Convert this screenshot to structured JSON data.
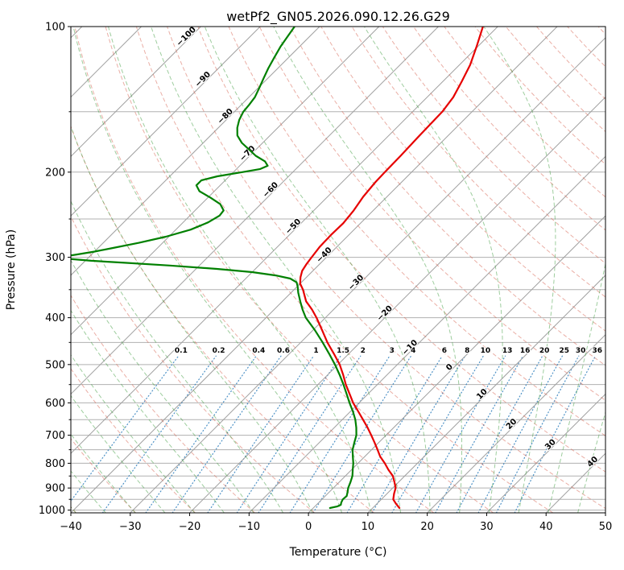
{
  "chart_data": {
    "type": "skewt",
    "title": "wetPf2_GN05.2026.090.12.26.G29",
    "xlabel": "Temperature (°C)",
    "ylabel": "Pressure (hPa)",
    "x_range": [
      -40,
      50
    ],
    "x_ticks": [
      -40,
      -30,
      -20,
      -10,
      0,
      10,
      20,
      30,
      40,
      50
    ],
    "pressure_range": [
      100,
      1013
    ],
    "pressure_ticks": [
      100,
      200,
      300,
      400,
      500,
      600,
      700,
      800,
      900,
      1000
    ],
    "pressure_gridlines": [
      100,
      150,
      200,
      250,
      300,
      350,
      400,
      450,
      500,
      550,
      600,
      650,
      700,
      750,
      800,
      850,
      900,
      950,
      1000
    ],
    "skew_degrees": 45,
    "isotherms": {
      "min": -120,
      "max": 50,
      "step": 10
    },
    "isotherm_labels": [
      [
        -100,
        106
      ],
      [
        -90,
        130
      ],
      [
        -80,
        155
      ],
      [
        -70,
        185
      ],
      [
        -60,
        220
      ],
      [
        -50,
        262
      ],
      [
        -40,
        300
      ],
      [
        -30,
        342
      ],
      [
        -20,
        396
      ],
      [
        -10,
        466
      ],
      [
        0,
        512
      ],
      [
        10,
        582
      ],
      [
        20,
        671
      ],
      [
        30,
        740
      ],
      [
        40,
        803
      ]
    ],
    "dry_adiabats": {
      "min": -50,
      "max": 200,
      "step": 10
    },
    "moist_adiabats": {
      "min": -40,
      "max": 45,
      "step": 5
    },
    "mixing_ratio_lines": {
      "values": [
        0.1,
        0.2,
        0.4,
        0.6,
        1,
        1.5,
        2,
        3,
        4,
        6,
        8,
        10,
        13,
        16,
        20,
        25,
        30,
        36
      ],
      "top_pressure": 480,
      "label_pressure": 472
    },
    "colors": {
      "temperature_line": "#e60000",
      "dewpoint_line": "#008000",
      "isotherm": "#a0a0a0",
      "grid": "#b0b0b0",
      "dry_adiabat": "#d6604d",
      "moist_adiabat": "#3f9d3f",
      "mixing_ratio": "#2e7ebc",
      "label_negative": "#2e7ebc",
      "label_zero": "#8a8a8a",
      "label_positive": "#cc4b43"
    },
    "temperature_profile": [
      [
        990,
        14.5
      ],
      [
        970,
        13.2
      ],
      [
        950,
        12.0
      ],
      [
        925,
        11.2
      ],
      [
        900,
        10.5
      ],
      [
        875,
        9.3
      ],
      [
        850,
        8.0
      ],
      [
        825,
        6.2
      ],
      [
        800,
        4.5
      ],
      [
        775,
        2.6
      ],
      [
        750,
        1.0
      ],
      [
        725,
        -0.7
      ],
      [
        700,
        -2.5
      ],
      [
        675,
        -4.4
      ],
      [
        650,
        -6.5
      ],
      [
        625,
        -8.7
      ],
      [
        600,
        -11.0
      ],
      [
        575,
        -13.1
      ],
      [
        550,
        -15.3
      ],
      [
        525,
        -17.4
      ],
      [
        500,
        -19.7
      ],
      [
        475,
        -22.5
      ],
      [
        450,
        -25.5
      ],
      [
        425,
        -28.4
      ],
      [
        400,
        -31.5
      ],
      [
        385,
        -33.6
      ],
      [
        370,
        -36.0
      ],
      [
        350,
        -38.5
      ],
      [
        340,
        -40.0
      ],
      [
        330,
        -41.0
      ],
      [
        320,
        -41.8
      ],
      [
        310,
        -42.2
      ],
      [
        300,
        -42.5
      ],
      [
        285,
        -42.9
      ],
      [
        270,
        -43.0
      ],
      [
        255,
        -42.9
      ],
      [
        240,
        -43.3
      ],
      [
        225,
        -44.0
      ],
      [
        210,
        -44.4
      ],
      [
        200,
        -44.5
      ],
      [
        185,
        -44.6
      ],
      [
        170,
        -44.8
      ],
      [
        160,
        -44.9
      ],
      [
        150,
        -45.0
      ],
      [
        140,
        -45.6
      ],
      [
        130,
        -46.8
      ],
      [
        120,
        -48.2
      ],
      [
        110,
        -50.2
      ],
      [
        100,
        -52.5
      ]
    ],
    "dewpoint_profile": [
      [
        990,
        2.8
      ],
      [
        982,
        3.8
      ],
      [
        975,
        4.1
      ],
      [
        965,
        3.8
      ],
      [
        950,
        3.5
      ],
      [
        935,
        3.6
      ],
      [
        915,
        3.0
      ],
      [
        900,
        2.5
      ],
      [
        875,
        1.9
      ],
      [
        850,
        1.2
      ],
      [
        825,
        0.2
      ],
      [
        800,
        -0.8
      ],
      [
        775,
        -2.0
      ],
      [
        750,
        -3.2
      ],
      [
        725,
        -4.1
      ],
      [
        700,
        -5.0
      ],
      [
        675,
        -6.3
      ],
      [
        650,
        -7.8
      ],
      [
        625,
        -9.6
      ],
      [
        600,
        -11.6
      ],
      [
        575,
        -13.6
      ],
      [
        550,
        -15.7
      ],
      [
        525,
        -18.0
      ],
      [
        500,
        -20.5
      ],
      [
        475,
        -23.3
      ],
      [
        450,
        -26.3
      ],
      [
        425,
        -29.6
      ],
      [
        400,
        -33.3
      ],
      [
        385,
        -35.2
      ],
      [
        370,
        -37.0
      ],
      [
        355,
        -38.8
      ],
      [
        345,
        -39.9
      ],
      [
        338,
        -40.8
      ],
      [
        332,
        -42.5
      ],
      [
        327,
        -45.5
      ],
      [
        322,
        -50.0
      ],
      [
        317,
        -56.5
      ],
      [
        312,
        -65.0
      ],
      [
        308,
        -73.0
      ],
      [
        305,
        -79.0
      ],
      [
        302,
        -83.5
      ],
      [
        299,
        -84.5
      ],
      [
        296,
        -82.5
      ],
      [
        292,
        -80.0
      ],
      [
        287,
        -77.5
      ],
      [
        280,
        -74.0
      ],
      [
        272,
        -70.5
      ],
      [
        263,
        -67.5
      ],
      [
        254,
        -65.8
      ],
      [
        246,
        -65.0
      ],
      [
        240,
        -65.2
      ],
      [
        233,
        -66.8
      ],
      [
        226,
        -69.5
      ],
      [
        219,
        -72.5
      ],
      [
        213,
        -74.0
      ],
      [
        208,
        -74.0
      ],
      [
        204,
        -72.0
      ],
      [
        200,
        -68.5
      ],
      [
        197,
        -66.0
      ],
      [
        194,
        -65.3
      ],
      [
        190,
        -66.5
      ],
      [
        185,
        -69.0
      ],
      [
        180,
        -71.0
      ],
      [
        174,
        -73.5
      ],
      [
        168,
        -75.5
      ],
      [
        162,
        -76.8
      ],
      [
        156,
        -77.8
      ],
      [
        150,
        -78.5
      ],
      [
        145,
        -78.7
      ],
      [
        140,
        -79.0
      ],
      [
        134,
        -79.8
      ],
      [
        128,
        -80.7
      ],
      [
        122,
        -81.6
      ],
      [
        116,
        -82.4
      ],
      [
        110,
        -83.2
      ],
      [
        105,
        -83.7
      ],
      [
        100,
        -84.2
      ]
    ]
  }
}
